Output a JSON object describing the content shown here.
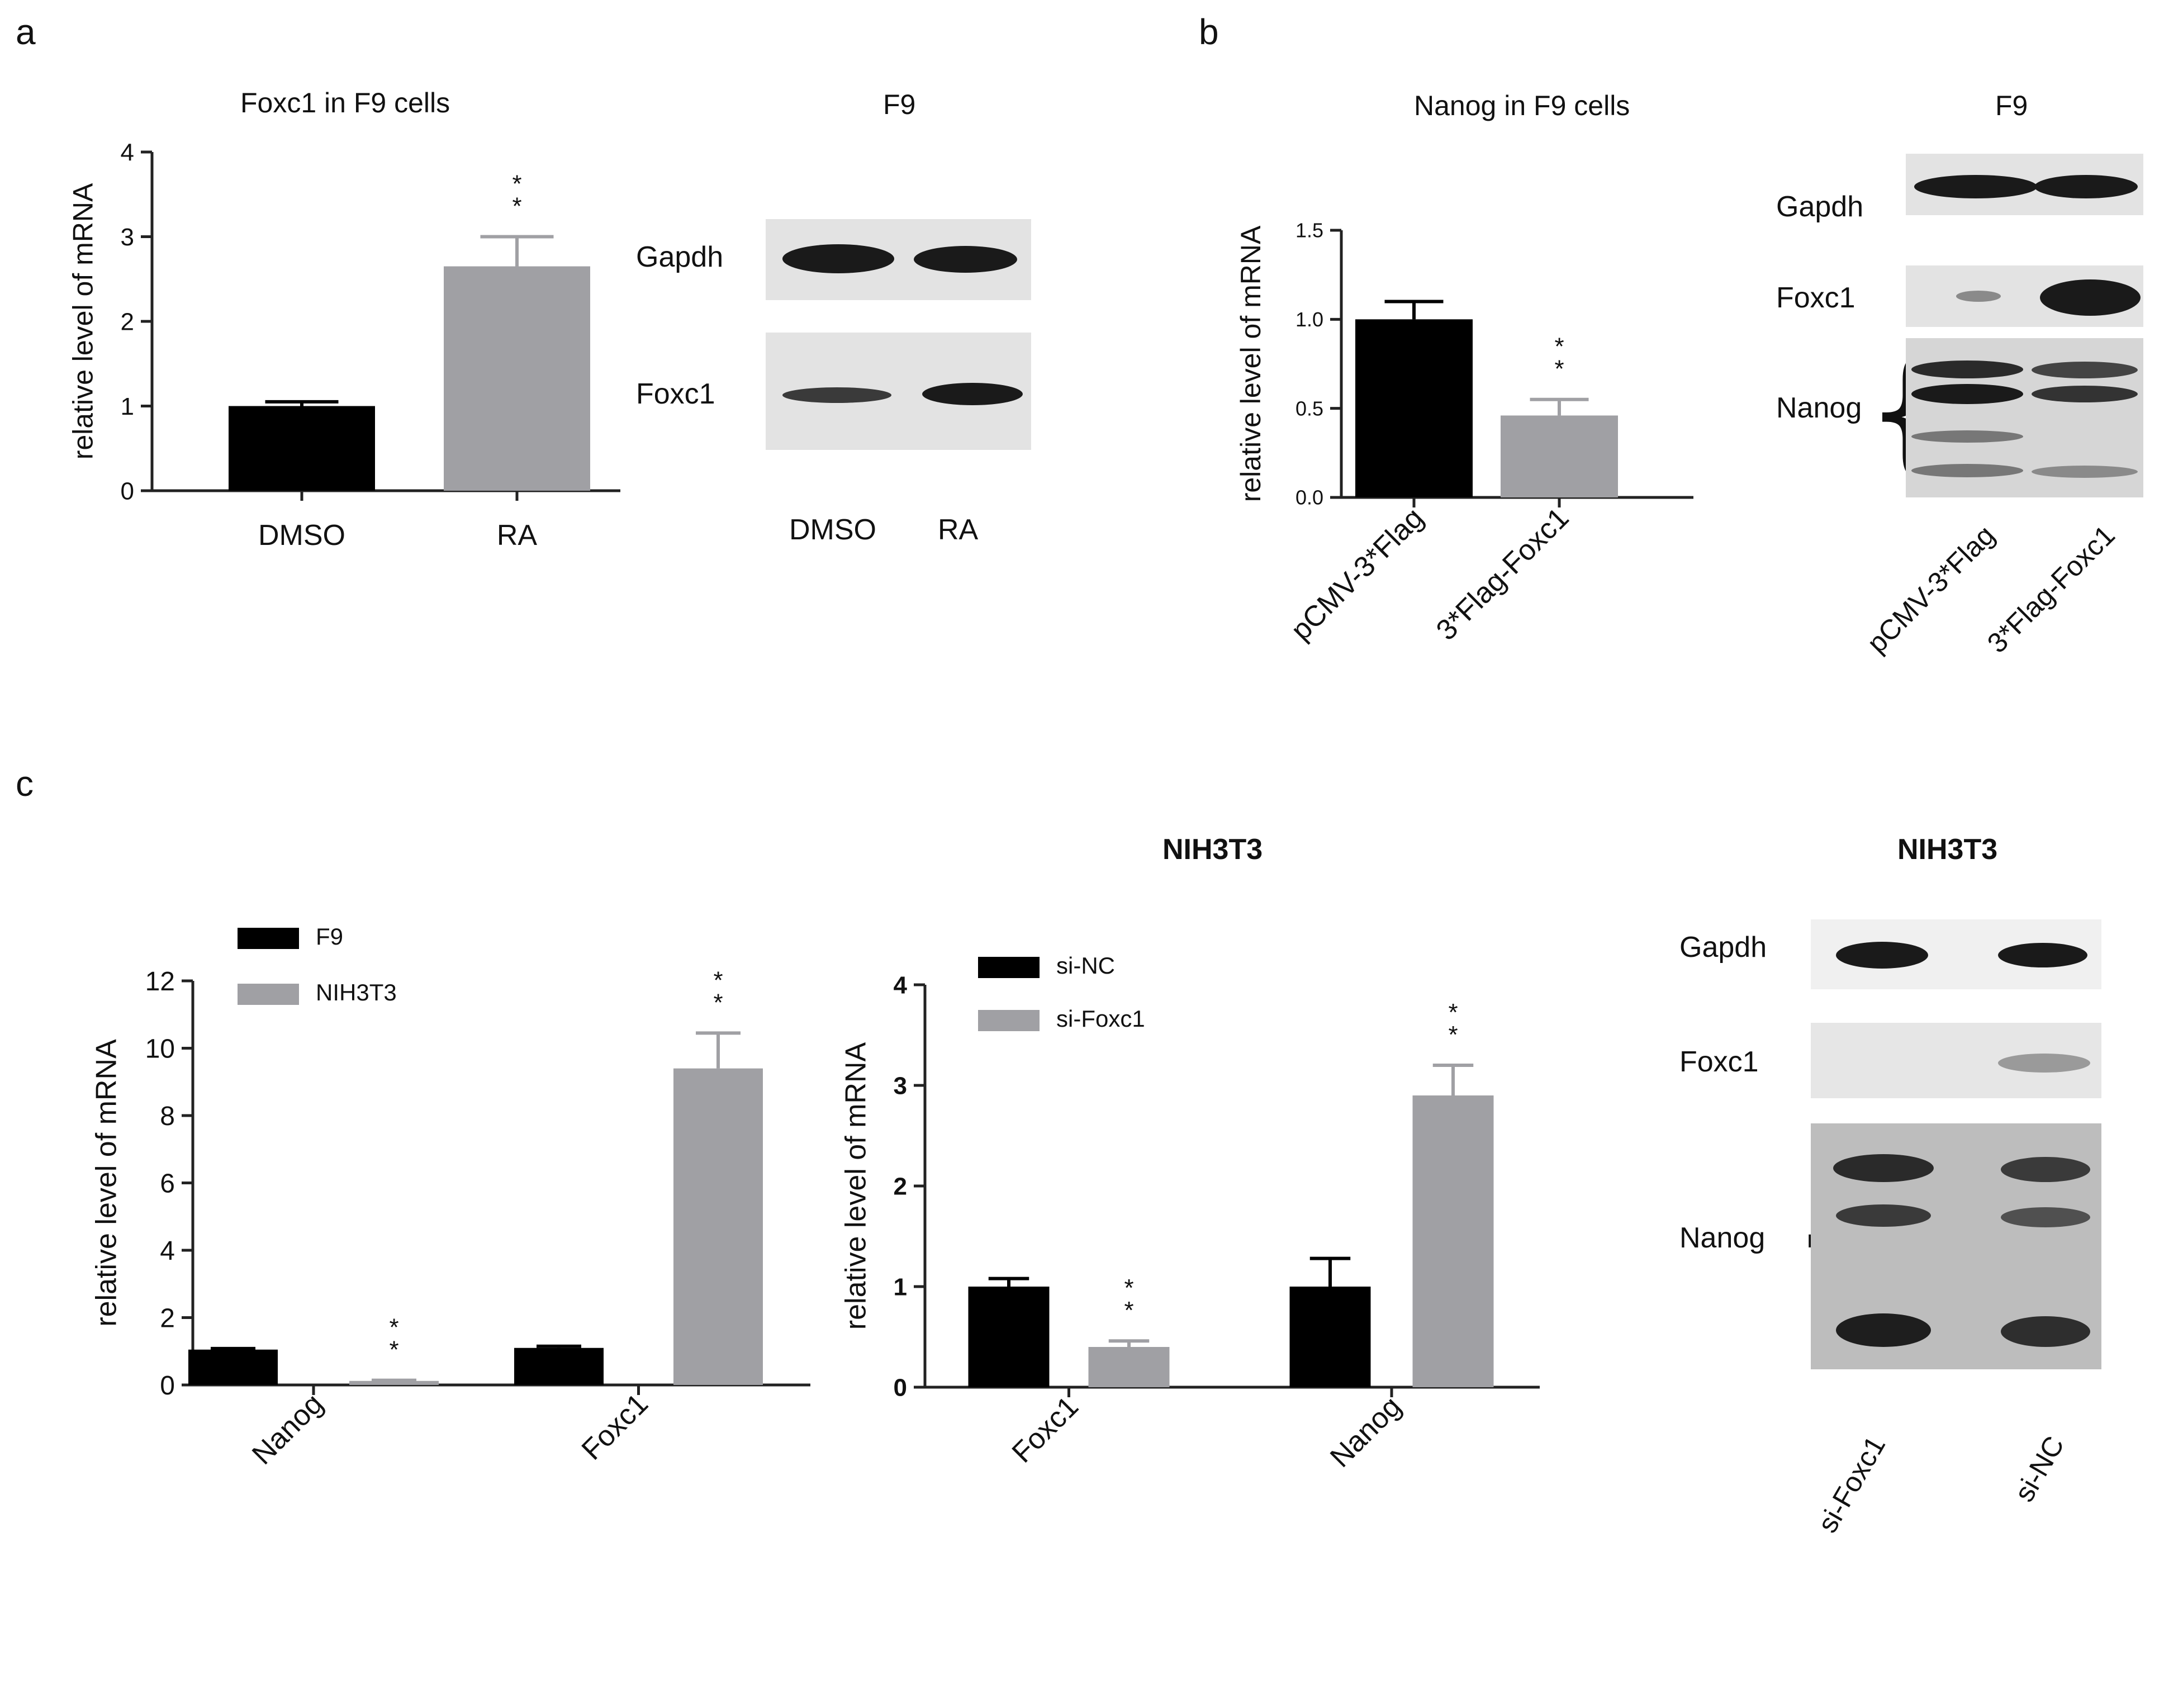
{
  "panels": {
    "a": {
      "label": "a",
      "chart_title": "Foxc1 in F9 cells",
      "blot_title": "F9",
      "blot_rows": [
        "Gapdh",
        "Foxc1"
      ],
      "blot_lanes": [
        "DMSO",
        "RA"
      ]
    },
    "b": {
      "label": "b",
      "chart_title": "Nanog in F9 cells",
      "blot_title": "F9",
      "blot_rows": [
        "Gapdh",
        "Foxc1",
        "Nanog"
      ],
      "blot_lanes": [
        "pCMV-3*Flag",
        "3*Flag-Foxc1"
      ]
    },
    "c": {
      "label": "c",
      "chart_title": "NIH3T3",
      "blot_title": "NIH3T3",
      "blot_rows": [
        "Gapdh",
        "Foxc1",
        "Nanog"
      ],
      "blot_lanes": [
        "si-Foxc1",
        "si-NC"
      ]
    }
  },
  "colors": {
    "series_black": "#000000",
    "series_gray": "#a0a0a4",
    "axis": "#222222"
  },
  "chart_data": [
    {
      "id": "a",
      "type": "bar",
      "title": "Foxc1 in F9 cells",
      "ylabel": "relative level of mRNA",
      "xlabel": "",
      "categories": [
        "DMSO",
        "RA"
      ],
      "values": [
        1.0,
        2.65
      ],
      "errors": [
        0.05,
        0.35
      ],
      "colors": [
        "#000000",
        "#a0a0a4"
      ],
      "significance": [
        "",
        "**"
      ],
      "ylim": [
        0,
        4
      ],
      "yticks": [
        "0",
        "1",
        "2",
        "3",
        "4"
      ],
      "grid": false
    },
    {
      "id": "b",
      "type": "bar",
      "title": "Nanog in F9 cells",
      "ylabel": "relative level of mRNA",
      "xlabel": "",
      "categories": [
        "pCMV-3*Flag",
        "3*Flag-Foxc1"
      ],
      "values": [
        1.0,
        0.46
      ],
      "errors": [
        0.1,
        0.09
      ],
      "colors": [
        "#000000",
        "#a0a0a4"
      ],
      "significance": [
        "",
        "**"
      ],
      "ylim": [
        0,
        1.5
      ],
      "yticks": [
        "0.0",
        "0.5",
        "1.0",
        "1.5"
      ],
      "grid": false
    },
    {
      "id": "c1",
      "type": "bar",
      "title": "",
      "ylabel": "relative level of mRNA",
      "xlabel": "",
      "categories": [
        "Nanog",
        "Foxc1"
      ],
      "series": [
        {
          "name": "F9",
          "values": [
            1.05,
            1.1
          ],
          "errors": [
            0.03,
            0.05
          ],
          "color": "#000000",
          "significance": [
            "",
            ""
          ]
        },
        {
          "name": "NIH3T3",
          "values": [
            0.12,
            9.4
          ],
          "errors": [
            0.02,
            1.05
          ],
          "color": "#a0a0a4",
          "significance": [
            "**",
            "**"
          ]
        }
      ],
      "ylim": [
        0,
        12
      ],
      "yticks": [
        "0",
        "2",
        "4",
        "6",
        "8",
        "10",
        "12"
      ],
      "legend": "top-left",
      "grid": false
    },
    {
      "id": "c2",
      "type": "bar",
      "title": "NIH3T3",
      "ylabel": "relative level of mRNA",
      "xlabel": "",
      "categories": [
        "Foxc1",
        "Nanog"
      ],
      "series": [
        {
          "name": "si-NC",
          "values": [
            1.0,
            1.0
          ],
          "errors": [
            0.08,
            0.28
          ],
          "color": "#000000",
          "significance": [
            "",
            ""
          ]
        },
        {
          "name": "si-Foxc1",
          "values": [
            0.4,
            2.9
          ],
          "errors": [
            0.06,
            0.3
          ],
          "color": "#a0a0a4",
          "significance": [
            "**",
            "**"
          ]
        }
      ],
      "ylim": [
        0,
        4
      ],
      "yticks": [
        "0",
        "1",
        "2",
        "3",
        "4"
      ],
      "legend": "top-left",
      "grid": false
    }
  ]
}
